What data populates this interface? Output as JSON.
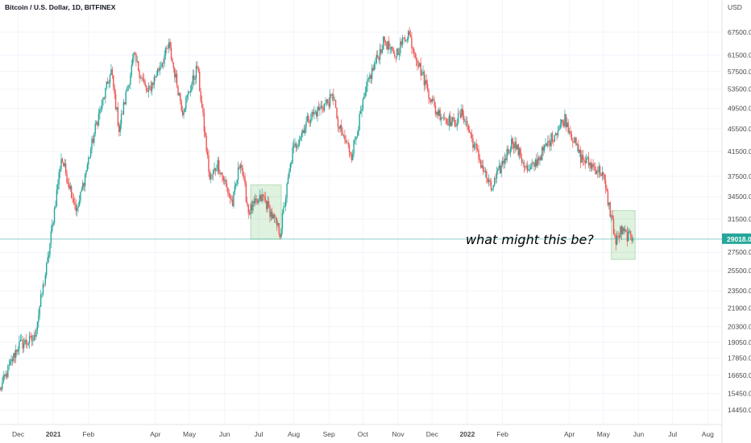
{
  "chart_data": {
    "type": "candlestick",
    "title": "Bitcoin / U.S. Dollar, 1D, BITFINEX",
    "currency": "USD",
    "scale": "log",
    "ylim": [
      13800,
      74000
    ],
    "x_ticks": [
      "Dec",
      "2021",
      "Feb",
      "Apr",
      "May",
      "Jun",
      "Jul",
      "Aug",
      "Sep",
      "Oct",
      "Nov",
      "Dec",
      "2022",
      "Feb",
      "Apr",
      "May",
      "Jun",
      "Jul",
      "Aug"
    ],
    "y_ticks": [
      "67500.0",
      "61500.0",
      "57500.0",
      "53500.0",
      "49500.0",
      "45500.0",
      "41500.0",
      "37500.0",
      "34500.0",
      "31500.0",
      "27500.0",
      "25500.0",
      "23500.0",
      "21900.0",
      "20300.0",
      "19050.0",
      "17850.0",
      "16650.0",
      "15450.0",
      "14450.0"
    ],
    "y_tick_values": [
      67500,
      61500,
      57500,
      53500,
      49500,
      45500,
      41500,
      37500,
      34500,
      31500,
      27500,
      25500,
      23500,
      21900,
      20300,
      19050,
      17850,
      16650,
      15450,
      14450
    ],
    "last_price": {
      "label": "29018.0",
      "value": 29018,
      "color": "#26a69a"
    },
    "annotation": "what might this be?",
    "highlight_zones": [
      {
        "from": "2021-06-24",
        "to": "2021-07-21",
        "low": 29000,
        "high": 36200,
        "color": "#4caf50"
      },
      {
        "from": "2022-05-08",
        "to": "2022-05-29",
        "low": 26700,
        "high": 32600,
        "color": "#4caf50"
      }
    ],
    "up_color": "#26a69a",
    "down_color": "#ef5350",
    "grid": true,
    "series_anchors": [
      {
        "date": "2020-11-15",
        "close": 15700
      },
      {
        "date": "2020-12-01",
        "close": 18800
      },
      {
        "date": "2020-12-15",
        "close": 19300
      },
      {
        "date": "2020-12-27",
        "close": 26500
      },
      {
        "date": "2021-01-08",
        "close": 40500
      },
      {
        "date": "2021-01-22",
        "close": 32500
      },
      {
        "date": "2021-02-08",
        "close": 46500
      },
      {
        "date": "2021-02-21",
        "close": 57500
      },
      {
        "date": "2021-02-28",
        "close": 45500
      },
      {
        "date": "2021-03-13",
        "close": 61200
      },
      {
        "date": "2021-03-25",
        "close": 52500
      },
      {
        "date": "2021-04-13",
        "close": 63800
      },
      {
        "date": "2021-04-25",
        "close": 49000
      },
      {
        "date": "2021-05-08",
        "close": 58500
      },
      {
        "date": "2021-05-12",
        "close": 49500
      },
      {
        "date": "2021-05-19",
        "close": 37000
      },
      {
        "date": "2021-05-26",
        "close": 39500
      },
      {
        "date": "2021-06-08",
        "close": 33500
      },
      {
        "date": "2021-06-15",
        "close": 40200
      },
      {
        "date": "2021-06-22",
        "close": 32500
      },
      {
        "date": "2021-07-05",
        "close": 34500
      },
      {
        "date": "2021-07-20",
        "close": 29800
      },
      {
        "date": "2021-07-31",
        "close": 41500
      },
      {
        "date": "2021-08-14",
        "close": 47500
      },
      {
        "date": "2021-09-06",
        "close": 52000
      },
      {
        "date": "2021-09-08",
        "close": 46500
      },
      {
        "date": "2021-09-21",
        "close": 41000
      },
      {
        "date": "2021-10-06",
        "close": 55500
      },
      {
        "date": "2021-10-20",
        "close": 65500
      },
      {
        "date": "2021-10-28",
        "close": 61000
      },
      {
        "date": "2021-11-10",
        "close": 67500
      },
      {
        "date": "2021-11-20",
        "close": 58500
      },
      {
        "date": "2021-12-04",
        "close": 49000
      },
      {
        "date": "2021-12-20",
        "close": 46500
      },
      {
        "date": "2021-12-28",
        "close": 48500
      },
      {
        "date": "2022-01-08",
        "close": 42000
      },
      {
        "date": "2022-01-22",
        "close": 35500
      },
      {
        "date": "2022-02-10",
        "close": 43500
      },
      {
        "date": "2022-02-24",
        "close": 38000
      },
      {
        "date": "2022-03-28",
        "close": 47500
      },
      {
        "date": "2022-04-11",
        "close": 40500
      },
      {
        "date": "2022-04-30",
        "close": 38000
      },
      {
        "date": "2022-05-09",
        "close": 31000
      },
      {
        "date": "2022-05-12",
        "close": 28500
      },
      {
        "date": "2022-05-16",
        "close": 30000
      },
      {
        "date": "2022-05-27",
        "close": 29018
      }
    ]
  }
}
